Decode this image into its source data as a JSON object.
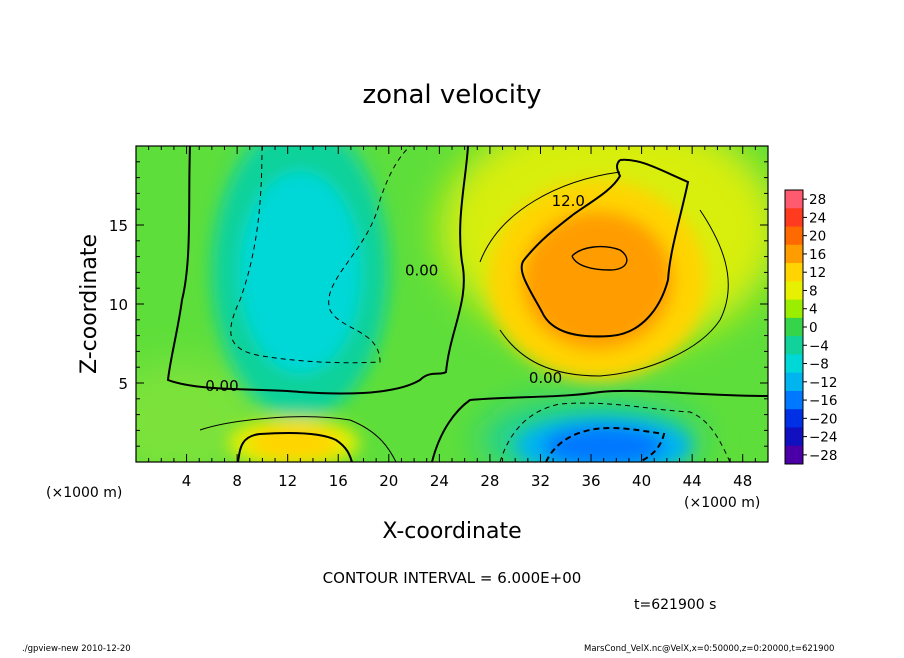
{
  "chart_data": {
    "type": "heatmap",
    "title": "zonal velocity",
    "xlabel": "X-coordinate",
    "ylabel": "Z-coordinate",
    "x_unit_label": "(×1000 m)",
    "z_unit_label": "(×1000 m)",
    "xlim": [
      0,
      50
    ],
    "ylim": [
      0,
      20
    ],
    "x_ticks": [
      4,
      8,
      12,
      16,
      20,
      24,
      28,
      32,
      36,
      40,
      44,
      48
    ],
    "y_ticks": [
      5,
      10,
      15
    ],
    "colorbar": {
      "labels": [
        "28",
        "24",
        "20",
        "16",
        "12",
        "8",
        "4",
        "0",
        "−4",
        "−8",
        "−12",
        "−16",
        "−20",
        "−24",
        "−28"
      ],
      "levels": [
        28,
        24,
        20,
        16,
        12,
        8,
        4,
        0,
        -4,
        -8,
        -12,
        -16,
        -20,
        -24,
        -28
      ],
      "colors": [
        "#ff5a6e",
        "#ff3a1e",
        "#ff6a00",
        "#ff9d00",
        "#ffd400",
        "#e6f000",
        "#9cee00",
        "#36d44a",
        "#10d29a",
        "#00d8d8",
        "#00b4f0",
        "#0078ff",
        "#0030e6",
        "#1010c0",
        "#4a00a6"
      ]
    },
    "contour_labels": [
      {
        "text": "12.0",
        "x": 34.2,
        "z": 16.2
      },
      {
        "text": "0.00",
        "x": 22.6,
        "z": 11.8
      },
      {
        "text": "0.00",
        "x": 6.8,
        "z": 4.5
      },
      {
        "text": "0.00",
        "x": 32.4,
        "z": 5.0
      }
    ],
    "regions": [
      {
        "name": "positive-core",
        "level": 16,
        "x": 36.5,
        "z": 11.5,
        "rx": 7.5,
        "rz": 5.5
      },
      {
        "name": "positive-surface",
        "level": 12,
        "x": 12.5,
        "z": 1.2,
        "rx": 4.5,
        "rz": 1.4
      },
      {
        "name": "negative-column",
        "level": -8,
        "x": 13,
        "z": 12,
        "rx": 6,
        "rz": 8
      },
      {
        "name": "negative-surface",
        "level": -16,
        "x": 37,
        "z": 1.0,
        "rx": 6,
        "rz": 1.6
      }
    ],
    "contour_interval_text": "CONTOUR INTERVAL = 6.000E+00",
    "time_text": "t=621900 s"
  },
  "footer": {
    "left": "./gpview-new 2010-12-20",
    "right": "MarsCond_VelX.nc@VelX,x=0:50000,z=0:20000,t=621900"
  }
}
